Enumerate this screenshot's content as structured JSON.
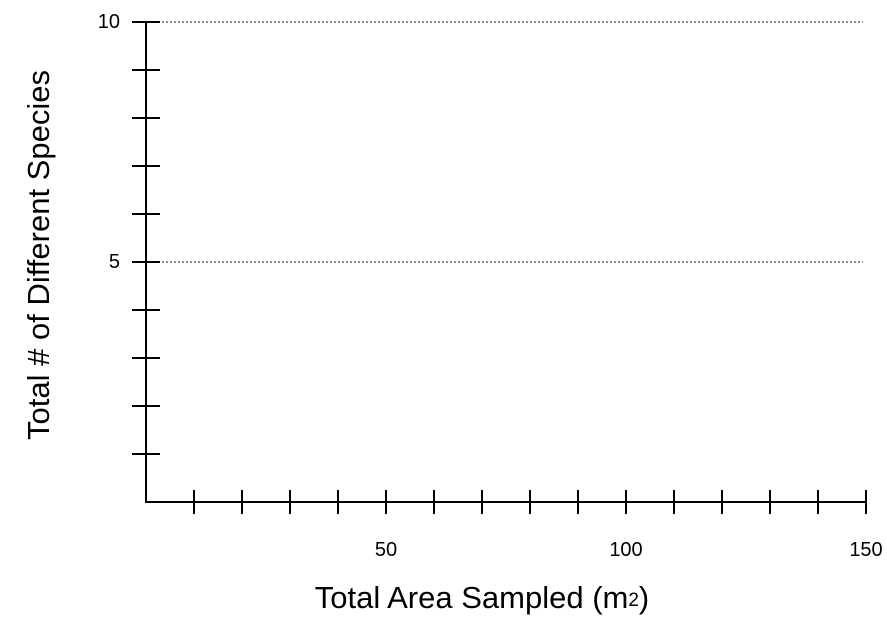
{
  "chart_data": {
    "type": "scatter",
    "title": "",
    "xlabel": {
      "prefix": "Total Area Sampled (m",
      "sup": "2",
      "suffix": ")"
    },
    "ylabel": "Total # of Different Species",
    "xlim": [
      0,
      150
    ],
    "ylim": [
      0,
      10
    ],
    "x_ticks": [
      10,
      20,
      30,
      40,
      50,
      60,
      70,
      80,
      90,
      100,
      110,
      120,
      130,
      140,
      150
    ],
    "x_tick_labels": [
      {
        "value": 50,
        "label": "50"
      },
      {
        "value": 100,
        "label": "100"
      },
      {
        "value": 150,
        "label": "150"
      }
    ],
    "y_ticks": [
      1,
      2,
      3,
      4,
      5,
      6,
      7,
      8,
      9,
      10
    ],
    "y_tick_labels": [
      {
        "value": 5,
        "label": "5"
      },
      {
        "value": 10,
        "label": "10"
      }
    ],
    "gridlines_y": [
      5,
      10
    ],
    "grid": "dotted horizontal at labeled y ticks",
    "series": []
  }
}
